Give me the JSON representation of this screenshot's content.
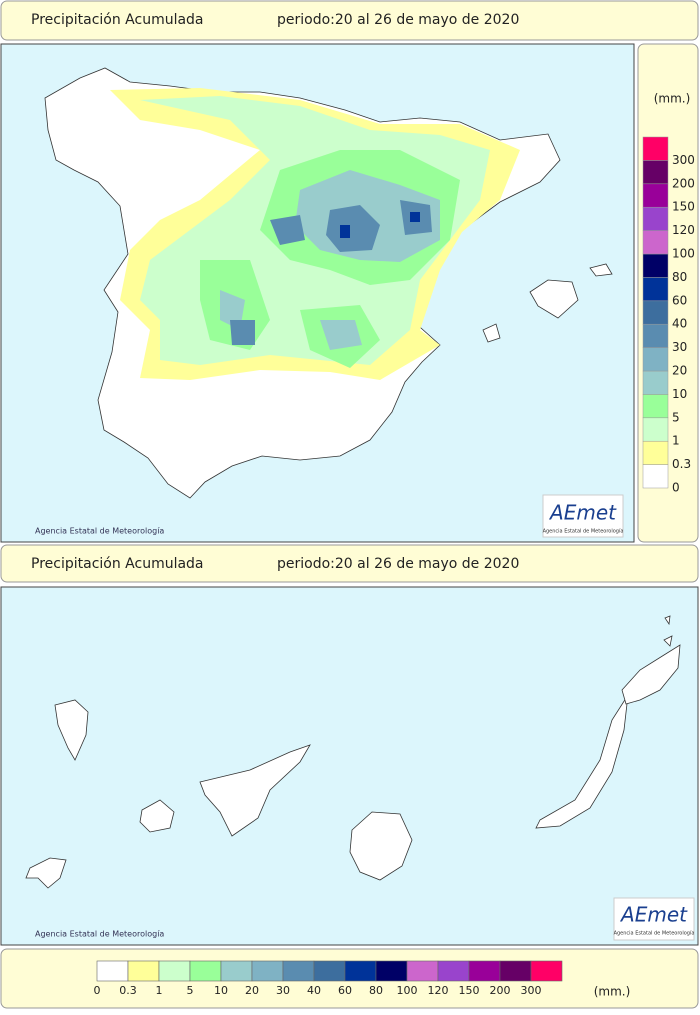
{
  "header": {
    "title": "Precipitación Acumulada",
    "period": "periodo:20 al 26 de mayo de 2020"
  },
  "header2": {
    "title": "Precipitación Acumulada",
    "period": "periodo:20 al 26 de mayo de 2020"
  },
  "credit": "Agencia Estatal de Meteorología",
  "credit2": "Agencia Estatal de Meteorología",
  "logo": {
    "name": "AEmet",
    "subtitle": "Agencia Estatal de Meteorología"
  },
  "logo2": {
    "name": "AEmet",
    "subtitle": "Agencia Estatal de Meteorología"
  },
  "legend": {
    "unit": "(mm.)",
    "levels": [
      {
        "value": 0,
        "color": "#ffffff"
      },
      {
        "value": 0.3,
        "color": "#ffff99"
      },
      {
        "value": 1,
        "color": "#ccffcc"
      },
      {
        "value": 5,
        "color": "#99ff99"
      },
      {
        "value": 10,
        "color": "#99cccc"
      },
      {
        "value": 20,
        "color": "#7fb2c4"
      },
      {
        "value": 30,
        "color": "#5a8cb0"
      },
      {
        "value": 40,
        "color": "#3d6e9e"
      },
      {
        "value": 60,
        "color": "#003399"
      },
      {
        "value": 80,
        "color": "#000066"
      },
      {
        "value": 100,
        "color": "#cc66cc"
      },
      {
        "value": 120,
        "color": "#9944cc"
      },
      {
        "value": 150,
        "color": "#990099"
      },
      {
        "value": 200,
        "color": "#660066"
      },
      {
        "value": 300,
        "color": "#ff0066"
      }
    ]
  },
  "legend2": {
    "unit": "(mm.)"
  }
}
